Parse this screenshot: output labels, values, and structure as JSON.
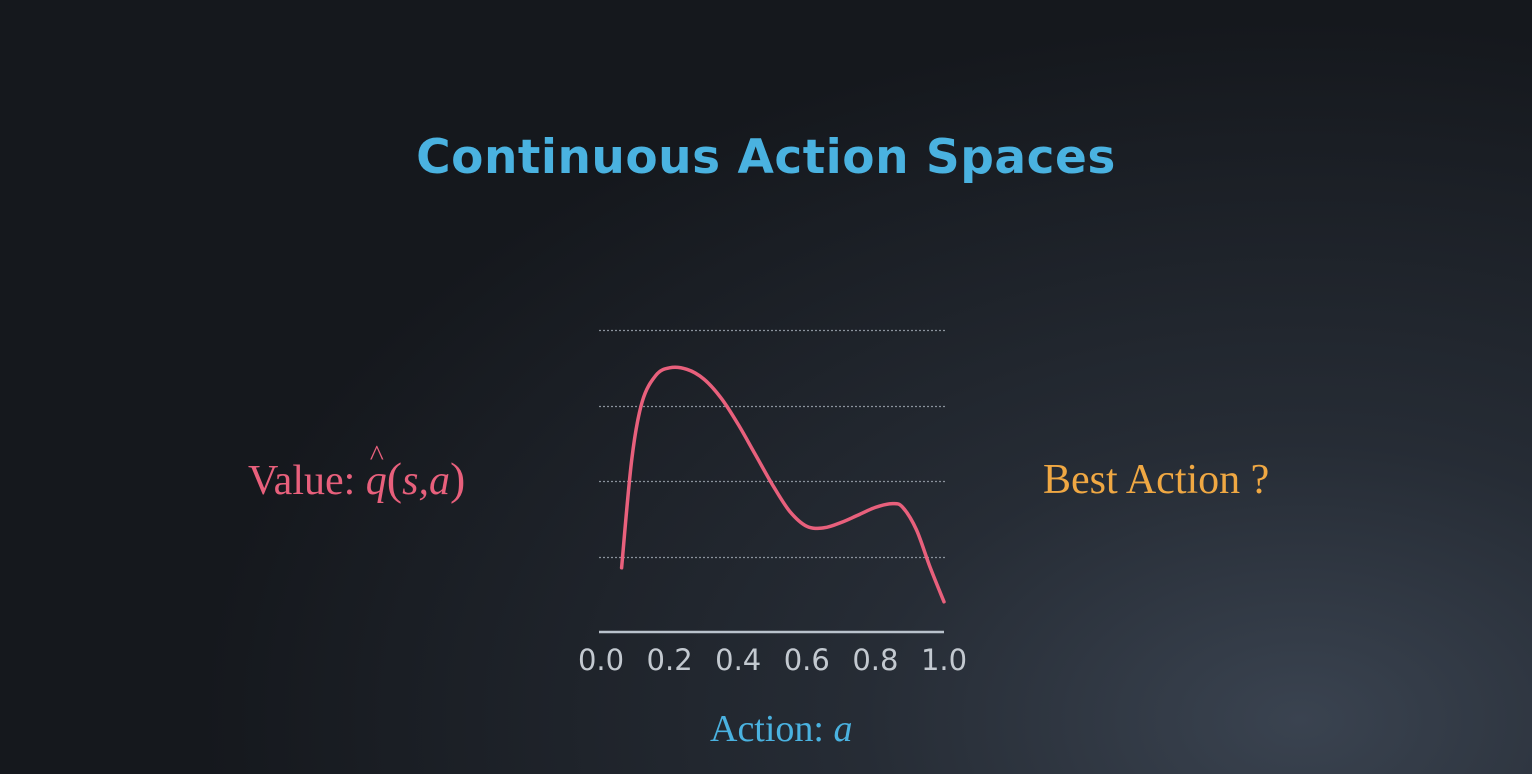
{
  "slide": {
    "title": "Continuous Action Spaces",
    "value_label": {
      "prefix": "Value:",
      "hat": "^",
      "q": "q",
      "open_paren": "(",
      "args": "s,a",
      "close_paren": ")"
    },
    "best_action": {
      "text": "Best Action",
      "question": "?"
    },
    "action_label": {
      "prefix": "Action:",
      "variable": "a"
    }
  },
  "colors": {
    "title": "#4ab2e0",
    "curve": "#e8607c",
    "best_action": "#f0a843",
    "axis": "#b9c2cc",
    "gridline": "#8a929c",
    "tick_label": "#c3c9d0"
  },
  "chart_data": {
    "type": "line",
    "title": "",
    "xlabel": "Action: a",
    "ylabel": "Value: q̂(s,a)",
    "xlim": [
      0.0,
      1.0
    ],
    "ylim": [
      0,
      4
    ],
    "x_ticks": [
      "0.0",
      "0.2",
      "0.4",
      "0.6",
      "0.8",
      "1.0"
    ],
    "gridlines_y": [
      1,
      2,
      3,
      4
    ],
    "grid": true,
    "series": [
      {
        "x": [
          0.06,
          0.09,
          0.12,
          0.16,
          0.2,
          0.25,
          0.3,
          0.35,
          0.4,
          0.45,
          0.5,
          0.55,
          0.6,
          0.65,
          0.7,
          0.75,
          0.8,
          0.85,
          0.88,
          0.92,
          0.96,
          1.0
        ],
        "y": [
          0.85,
          2.3,
          3.05,
          3.4,
          3.5,
          3.48,
          3.35,
          3.1,
          2.75,
          2.35,
          1.95,
          1.6,
          1.4,
          1.38,
          1.45,
          1.55,
          1.65,
          1.7,
          1.65,
          1.35,
          0.85,
          0.4
        ]
      }
    ]
  }
}
